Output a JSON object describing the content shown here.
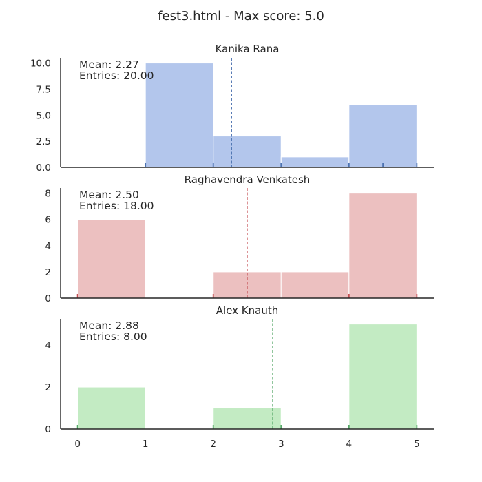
{
  "figure": {
    "title": "fest3.html - Max score: 5.0"
  },
  "chart_data": [
    {
      "type": "histogram",
      "title": "Kanika Rana",
      "color": "#4c72b0",
      "fill": "#b3c6ec",
      "bins": [
        [
          0,
          1
        ],
        [
          1,
          2
        ],
        [
          2,
          3
        ],
        [
          3,
          4
        ],
        [
          4,
          5
        ]
      ],
      "values": [
        0,
        10,
        3,
        1,
        6
      ],
      "rug": [
        1,
        2,
        3,
        4,
        4.5,
        5
      ],
      "mean": 2.27,
      "mean_label": "Mean: 2.27",
      "entries_label": "Entries: 20.00",
      "ylim": [
        0,
        10.5
      ],
      "yticks": [
        "0.0",
        "2.5",
        "5.0",
        "7.5",
        "10.0"
      ],
      "ytick_values": [
        0,
        2.5,
        5,
        7.5,
        10
      ],
      "xlim": [
        -0.25,
        5.25
      ],
      "xticks": [],
      "grid": false
    },
    {
      "type": "histogram",
      "title": "Raghavendra Venkatesh",
      "color": "#c44e52",
      "fill": "#ecc0c0",
      "bins": [
        [
          0,
          1
        ],
        [
          1,
          2
        ],
        [
          2,
          3
        ],
        [
          3,
          4
        ],
        [
          4,
          5
        ]
      ],
      "values": [
        6,
        0,
        2,
        2,
        8
      ],
      "rug": [
        0,
        2,
        4,
        5
      ],
      "mean": 2.5,
      "mean_label": "Mean: 2.50",
      "entries_label": "Entries: 18.00",
      "ylim": [
        0,
        8.4
      ],
      "yticks": [
        "0",
        "2",
        "4",
        "6",
        "8"
      ],
      "ytick_values": [
        0,
        2,
        4,
        6,
        8
      ],
      "xlim": [
        -0.25,
        5.25
      ],
      "xticks": [],
      "grid": false
    },
    {
      "type": "histogram",
      "title": "Alex Knauth",
      "color": "#55a868",
      "fill": "#c3ebc3",
      "bins": [
        [
          0,
          1
        ],
        [
          1,
          2
        ],
        [
          2,
          3
        ],
        [
          3,
          4
        ],
        [
          4,
          5
        ]
      ],
      "values": [
        2,
        0,
        1,
        0,
        5
      ],
      "rug": [
        0,
        2,
        3,
        4,
        5
      ],
      "mean": 2.875,
      "mean_label": "Mean: 2.88",
      "entries_label": "Entries: 8.00",
      "ylim": [
        0,
        5.25
      ],
      "yticks": [
        "0",
        "2",
        "4"
      ],
      "ytick_values": [
        0,
        2,
        4
      ],
      "xlim": [
        -0.25,
        5.25
      ],
      "xticks": [
        "0",
        "1",
        "2",
        "3",
        "4",
        "5"
      ],
      "xtick_values": [
        0,
        1,
        2,
        3,
        4,
        5
      ],
      "grid": false
    }
  ]
}
